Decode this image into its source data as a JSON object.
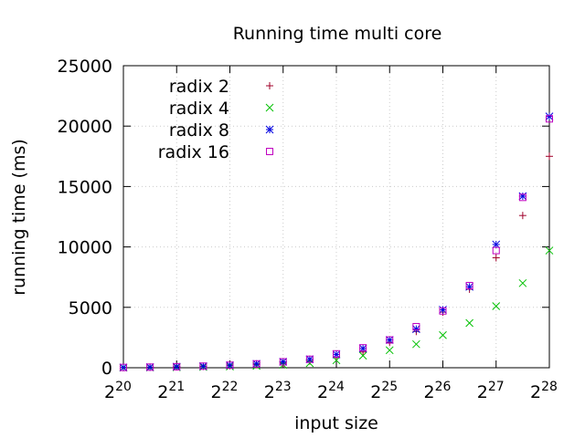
{
  "chart_data": {
    "type": "scatter",
    "title": "Running time multi core",
    "xlabel": "input size",
    "ylabel": "running time (ms)",
    "x_scale": "log2",
    "x_tick_exponents": [
      "20",
      "21",
      "22",
      "23",
      "24",
      "25",
      "26",
      "27",
      "28"
    ],
    "x_tick_base": "2",
    "xlim": [
      1048576,
      268435456
    ],
    "ylim": [
      0,
      25000
    ],
    "y_ticks": [
      "0",
      "5000",
      "10000",
      "15000",
      "20000",
      "25000"
    ],
    "grid": true,
    "legend_position": "top-left",
    "x": [
      1048576,
      1482910,
      2097152,
      2965821,
      4194304,
      5931642,
      8388608,
      11863283,
      16777216,
      23726566,
      33554432,
      47453133,
      67108864,
      94906266,
      134217728,
      189812531,
      268435456
    ],
    "series": [
      {
        "name": "radix 2",
        "marker": "plus",
        "color": "#a0002a",
        "values": [
          20,
          40,
          70,
          110,
          170,
          260,
          380,
          560,
          850,
          1300,
          2100,
          3000,
          4600,
          6500,
          9100,
          12600,
          17500
        ]
      },
      {
        "name": "radix 4",
        "marker": "cross",
        "color": "#00c000",
        "values": [
          10,
          25,
          40,
          65,
          100,
          150,
          240,
          380,
          620,
          1000,
          1450,
          1950,
          2700,
          3700,
          5100,
          7000,
          9700
        ]
      },
      {
        "name": "radix 8",
        "marker": "star",
        "color": "#0000e0",
        "values": [
          25,
          50,
          85,
          130,
          210,
          320,
          490,
          700,
          1100,
          1600,
          2300,
          3200,
          4800,
          6700,
          10200,
          14200,
          20800
        ]
      },
      {
        "name": "radix 16",
        "marker": "box",
        "color": "#c000c0",
        "values": [
          25,
          50,
          85,
          130,
          210,
          320,
          490,
          700,
          1150,
          1650,
          2300,
          3400,
          4700,
          6800,
          9700,
          14100,
          20600
        ]
      }
    ]
  }
}
